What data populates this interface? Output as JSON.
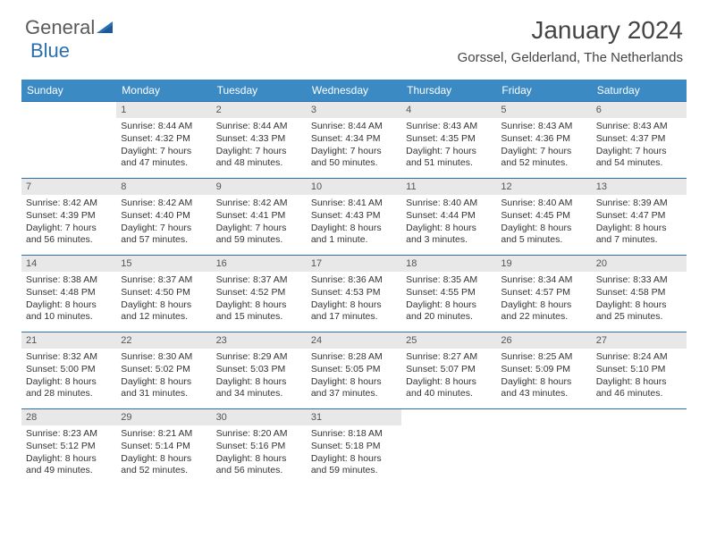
{
  "brand": {
    "part1": "General",
    "part2": "Blue"
  },
  "title": "January 2024",
  "location": "Gorssel, Gelderland, The Netherlands",
  "header_bg": "#3b8ac4",
  "border_color": "#2a6fb0",
  "daynum_bg": "#e8e8e8",
  "weekdays": [
    "Sunday",
    "Monday",
    "Tuesday",
    "Wednesday",
    "Thursday",
    "Friday",
    "Saturday"
  ],
  "fontsize_title": 28,
  "fontsize_location": 15,
  "fontsize_head": 12,
  "fontsize_cell": 10.5,
  "start_offset": 1,
  "days": [
    {
      "n": "1",
      "sr": "Sunrise: 8:44 AM",
      "ss": "Sunset: 4:32 PM",
      "dl1": "Daylight: 7 hours",
      "dl2": "and 47 minutes."
    },
    {
      "n": "2",
      "sr": "Sunrise: 8:44 AM",
      "ss": "Sunset: 4:33 PM",
      "dl1": "Daylight: 7 hours",
      "dl2": "and 48 minutes."
    },
    {
      "n": "3",
      "sr": "Sunrise: 8:44 AM",
      "ss": "Sunset: 4:34 PM",
      "dl1": "Daylight: 7 hours",
      "dl2": "and 50 minutes."
    },
    {
      "n": "4",
      "sr": "Sunrise: 8:43 AM",
      "ss": "Sunset: 4:35 PM",
      "dl1": "Daylight: 7 hours",
      "dl2": "and 51 minutes."
    },
    {
      "n": "5",
      "sr": "Sunrise: 8:43 AM",
      "ss": "Sunset: 4:36 PM",
      "dl1": "Daylight: 7 hours",
      "dl2": "and 52 minutes."
    },
    {
      "n": "6",
      "sr": "Sunrise: 8:43 AM",
      "ss": "Sunset: 4:37 PM",
      "dl1": "Daylight: 7 hours",
      "dl2": "and 54 minutes."
    },
    {
      "n": "7",
      "sr": "Sunrise: 8:42 AM",
      "ss": "Sunset: 4:39 PM",
      "dl1": "Daylight: 7 hours",
      "dl2": "and 56 minutes."
    },
    {
      "n": "8",
      "sr": "Sunrise: 8:42 AM",
      "ss": "Sunset: 4:40 PM",
      "dl1": "Daylight: 7 hours",
      "dl2": "and 57 minutes."
    },
    {
      "n": "9",
      "sr": "Sunrise: 8:42 AM",
      "ss": "Sunset: 4:41 PM",
      "dl1": "Daylight: 7 hours",
      "dl2": "and 59 minutes."
    },
    {
      "n": "10",
      "sr": "Sunrise: 8:41 AM",
      "ss": "Sunset: 4:43 PM",
      "dl1": "Daylight: 8 hours",
      "dl2": "and 1 minute."
    },
    {
      "n": "11",
      "sr": "Sunrise: 8:40 AM",
      "ss": "Sunset: 4:44 PM",
      "dl1": "Daylight: 8 hours",
      "dl2": "and 3 minutes."
    },
    {
      "n": "12",
      "sr": "Sunrise: 8:40 AM",
      "ss": "Sunset: 4:45 PM",
      "dl1": "Daylight: 8 hours",
      "dl2": "and 5 minutes."
    },
    {
      "n": "13",
      "sr": "Sunrise: 8:39 AM",
      "ss": "Sunset: 4:47 PM",
      "dl1": "Daylight: 8 hours",
      "dl2": "and 7 minutes."
    },
    {
      "n": "14",
      "sr": "Sunrise: 8:38 AM",
      "ss": "Sunset: 4:48 PM",
      "dl1": "Daylight: 8 hours",
      "dl2": "and 10 minutes."
    },
    {
      "n": "15",
      "sr": "Sunrise: 8:37 AM",
      "ss": "Sunset: 4:50 PM",
      "dl1": "Daylight: 8 hours",
      "dl2": "and 12 minutes."
    },
    {
      "n": "16",
      "sr": "Sunrise: 8:37 AM",
      "ss": "Sunset: 4:52 PM",
      "dl1": "Daylight: 8 hours",
      "dl2": "and 15 minutes."
    },
    {
      "n": "17",
      "sr": "Sunrise: 8:36 AM",
      "ss": "Sunset: 4:53 PM",
      "dl1": "Daylight: 8 hours",
      "dl2": "and 17 minutes."
    },
    {
      "n": "18",
      "sr": "Sunrise: 8:35 AM",
      "ss": "Sunset: 4:55 PM",
      "dl1": "Daylight: 8 hours",
      "dl2": "and 20 minutes."
    },
    {
      "n": "19",
      "sr": "Sunrise: 8:34 AM",
      "ss": "Sunset: 4:57 PM",
      "dl1": "Daylight: 8 hours",
      "dl2": "and 22 minutes."
    },
    {
      "n": "20",
      "sr": "Sunrise: 8:33 AM",
      "ss": "Sunset: 4:58 PM",
      "dl1": "Daylight: 8 hours",
      "dl2": "and 25 minutes."
    },
    {
      "n": "21",
      "sr": "Sunrise: 8:32 AM",
      "ss": "Sunset: 5:00 PM",
      "dl1": "Daylight: 8 hours",
      "dl2": "and 28 minutes."
    },
    {
      "n": "22",
      "sr": "Sunrise: 8:30 AM",
      "ss": "Sunset: 5:02 PM",
      "dl1": "Daylight: 8 hours",
      "dl2": "and 31 minutes."
    },
    {
      "n": "23",
      "sr": "Sunrise: 8:29 AM",
      "ss": "Sunset: 5:03 PM",
      "dl1": "Daylight: 8 hours",
      "dl2": "and 34 minutes."
    },
    {
      "n": "24",
      "sr": "Sunrise: 8:28 AM",
      "ss": "Sunset: 5:05 PM",
      "dl1": "Daylight: 8 hours",
      "dl2": "and 37 minutes."
    },
    {
      "n": "25",
      "sr": "Sunrise: 8:27 AM",
      "ss": "Sunset: 5:07 PM",
      "dl1": "Daylight: 8 hours",
      "dl2": "and 40 minutes."
    },
    {
      "n": "26",
      "sr": "Sunrise: 8:25 AM",
      "ss": "Sunset: 5:09 PM",
      "dl1": "Daylight: 8 hours",
      "dl2": "and 43 minutes."
    },
    {
      "n": "27",
      "sr": "Sunrise: 8:24 AM",
      "ss": "Sunset: 5:10 PM",
      "dl1": "Daylight: 8 hours",
      "dl2": "and 46 minutes."
    },
    {
      "n": "28",
      "sr": "Sunrise: 8:23 AM",
      "ss": "Sunset: 5:12 PM",
      "dl1": "Daylight: 8 hours",
      "dl2": "and 49 minutes."
    },
    {
      "n": "29",
      "sr": "Sunrise: 8:21 AM",
      "ss": "Sunset: 5:14 PM",
      "dl1": "Daylight: 8 hours",
      "dl2": "and 52 minutes."
    },
    {
      "n": "30",
      "sr": "Sunrise: 8:20 AM",
      "ss": "Sunset: 5:16 PM",
      "dl1": "Daylight: 8 hours",
      "dl2": "and 56 minutes."
    },
    {
      "n": "31",
      "sr": "Sunrise: 8:18 AM",
      "ss": "Sunset: 5:18 PM",
      "dl1": "Daylight: 8 hours",
      "dl2": "and 59 minutes."
    }
  ]
}
